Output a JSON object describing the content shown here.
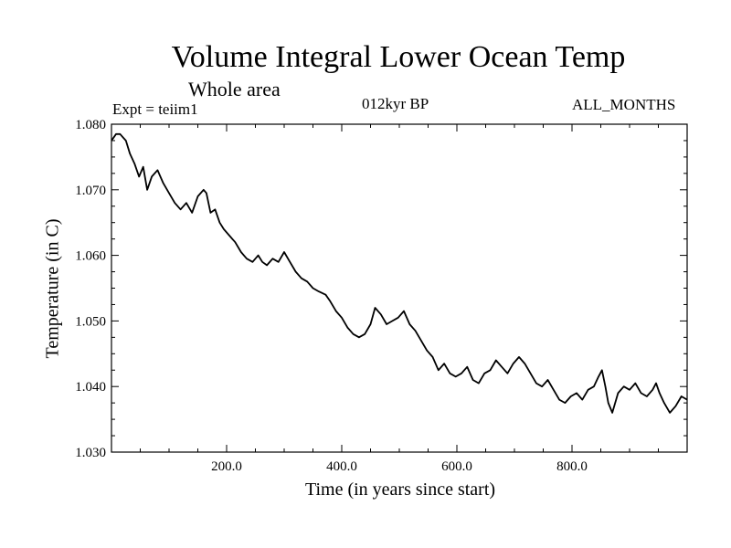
{
  "chart_data": {
    "type": "line",
    "title": "Volume Integral Lower Ocean Temp",
    "subtitle": "Whole area",
    "annotations": {
      "expt": "Expt = teiim1",
      "period": "012kyr BP",
      "months": "ALL_MONTHS"
    },
    "xlabel": "Time (in years since start)",
    "ylabel": "Temperature (in C)",
    "xlim": [
      0,
      1000
    ],
    "ylim": [
      1.03,
      1.08
    ],
    "xticks": [
      200,
      400,
      600,
      800
    ],
    "xtick_labels": [
      "200.0",
      "400.0",
      "600.0",
      "800.0"
    ],
    "yticks": [
      1.03,
      1.04,
      1.05,
      1.06,
      1.07,
      1.08
    ],
    "ytick_labels": [
      "1.030",
      "1.040",
      "1.050",
      "1.060",
      "1.070",
      "1.080"
    ],
    "grid": false,
    "series": [
      {
        "color": "#000000",
        "x": [
          0,
          8,
          15,
          25,
          32,
          40,
          48,
          55,
          62,
          70,
          80,
          90,
          100,
          110,
          120,
          130,
          140,
          150,
          160,
          165,
          172,
          180,
          188,
          195,
          205,
          215,
          225,
          235,
          245,
          255,
          262,
          270,
          280,
          290,
          300,
          310,
          320,
          330,
          340,
          350,
          360,
          372,
          380,
          390,
          400,
          410,
          420,
          430,
          440,
          450,
          458,
          468,
          478,
          488,
          498,
          508,
          518,
          528,
          538,
          548,
          558,
          568,
          578,
          588,
          598,
          608,
          618,
          628,
          638,
          648,
          658,
          668,
          678,
          688,
          698,
          708,
          718,
          728,
          738,
          748,
          758,
          768,
          778,
          788,
          798,
          808,
          818,
          828,
          838,
          846,
          852,
          858,
          863,
          870,
          880,
          890,
          900,
          910,
          920,
          930,
          940,
          946,
          952,
          960,
          970,
          980,
          990,
          1000
        ],
        "y": [
          1.0775,
          1.0785,
          1.0785,
          1.0775,
          1.0755,
          1.074,
          1.072,
          1.0735,
          1.07,
          1.072,
          1.073,
          1.071,
          1.0695,
          1.068,
          1.067,
          1.068,
          1.0665,
          1.069,
          1.07,
          1.0695,
          1.0665,
          1.067,
          1.065,
          1.064,
          1.063,
          1.062,
          1.0605,
          1.0595,
          1.059,
          1.06,
          1.059,
          1.0585,
          1.0595,
          1.059,
          1.0605,
          1.059,
          1.0575,
          1.0565,
          1.056,
          1.055,
          1.0545,
          1.054,
          1.053,
          1.0515,
          1.0505,
          1.049,
          1.048,
          1.0475,
          1.048,
          1.0495,
          1.052,
          1.051,
          1.0495,
          1.05,
          1.0505,
          1.0515,
          1.0495,
          1.0485,
          1.047,
          1.0455,
          1.0445,
          1.0425,
          1.0435,
          1.042,
          1.0415,
          1.042,
          1.043,
          1.041,
          1.0405,
          1.042,
          1.0425,
          1.044,
          1.043,
          1.042,
          1.0435,
          1.0445,
          1.0435,
          1.042,
          1.0405,
          1.04,
          1.041,
          1.0395,
          1.038,
          1.0375,
          1.0385,
          1.039,
          1.038,
          1.0395,
          1.04,
          1.0415,
          1.0425,
          1.04,
          1.0375,
          1.036,
          1.039,
          1.04,
          1.0395,
          1.0405,
          1.039,
          1.0385,
          1.0395,
          1.0405,
          1.039,
          1.0375,
          1.036,
          1.037,
          1.0385,
          1.038
        ]
      }
    ]
  }
}
